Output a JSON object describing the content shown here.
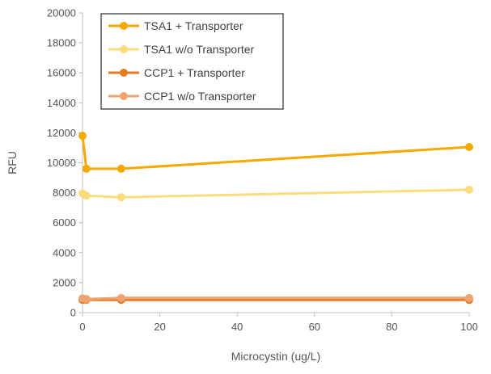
{
  "chart_data": {
    "type": "line",
    "title": "",
    "xlabel": "Microcystin  (ug/L)",
    "ylabel": "RFU",
    "xlim": [
      0,
      100
    ],
    "ylim": [
      0,
      20000
    ],
    "x_ticks": [
      "0",
      "20",
      "40",
      "60",
      "80",
      "100"
    ],
    "y_ticks": [
      "0",
      "2000",
      "4000",
      "6000",
      "8000",
      "10000",
      "12000",
      "14000",
      "16000",
      "18000",
      "20000"
    ],
    "grid": false,
    "legend_position": "top-left",
    "x": [
      0,
      1,
      10,
      100
    ],
    "series": [
      {
        "name": "TSA1 + Transporter",
        "color": "#f5a800",
        "values": [
          11800,
          9600,
          9600,
          11050
        ]
      },
      {
        "name": "TSA1 w/o Transporter",
        "color": "#fbdc7c",
        "values": [
          7950,
          7800,
          7700,
          8200
        ]
      },
      {
        "name": "CCP1 + Transporter",
        "color": "#e57b20",
        "values": [
          850,
          850,
          850,
          850
        ]
      },
      {
        "name": "CCP1 w/o Transporter",
        "color": "#f0a371",
        "values": [
          950,
          900,
          980,
          980
        ]
      }
    ]
  }
}
